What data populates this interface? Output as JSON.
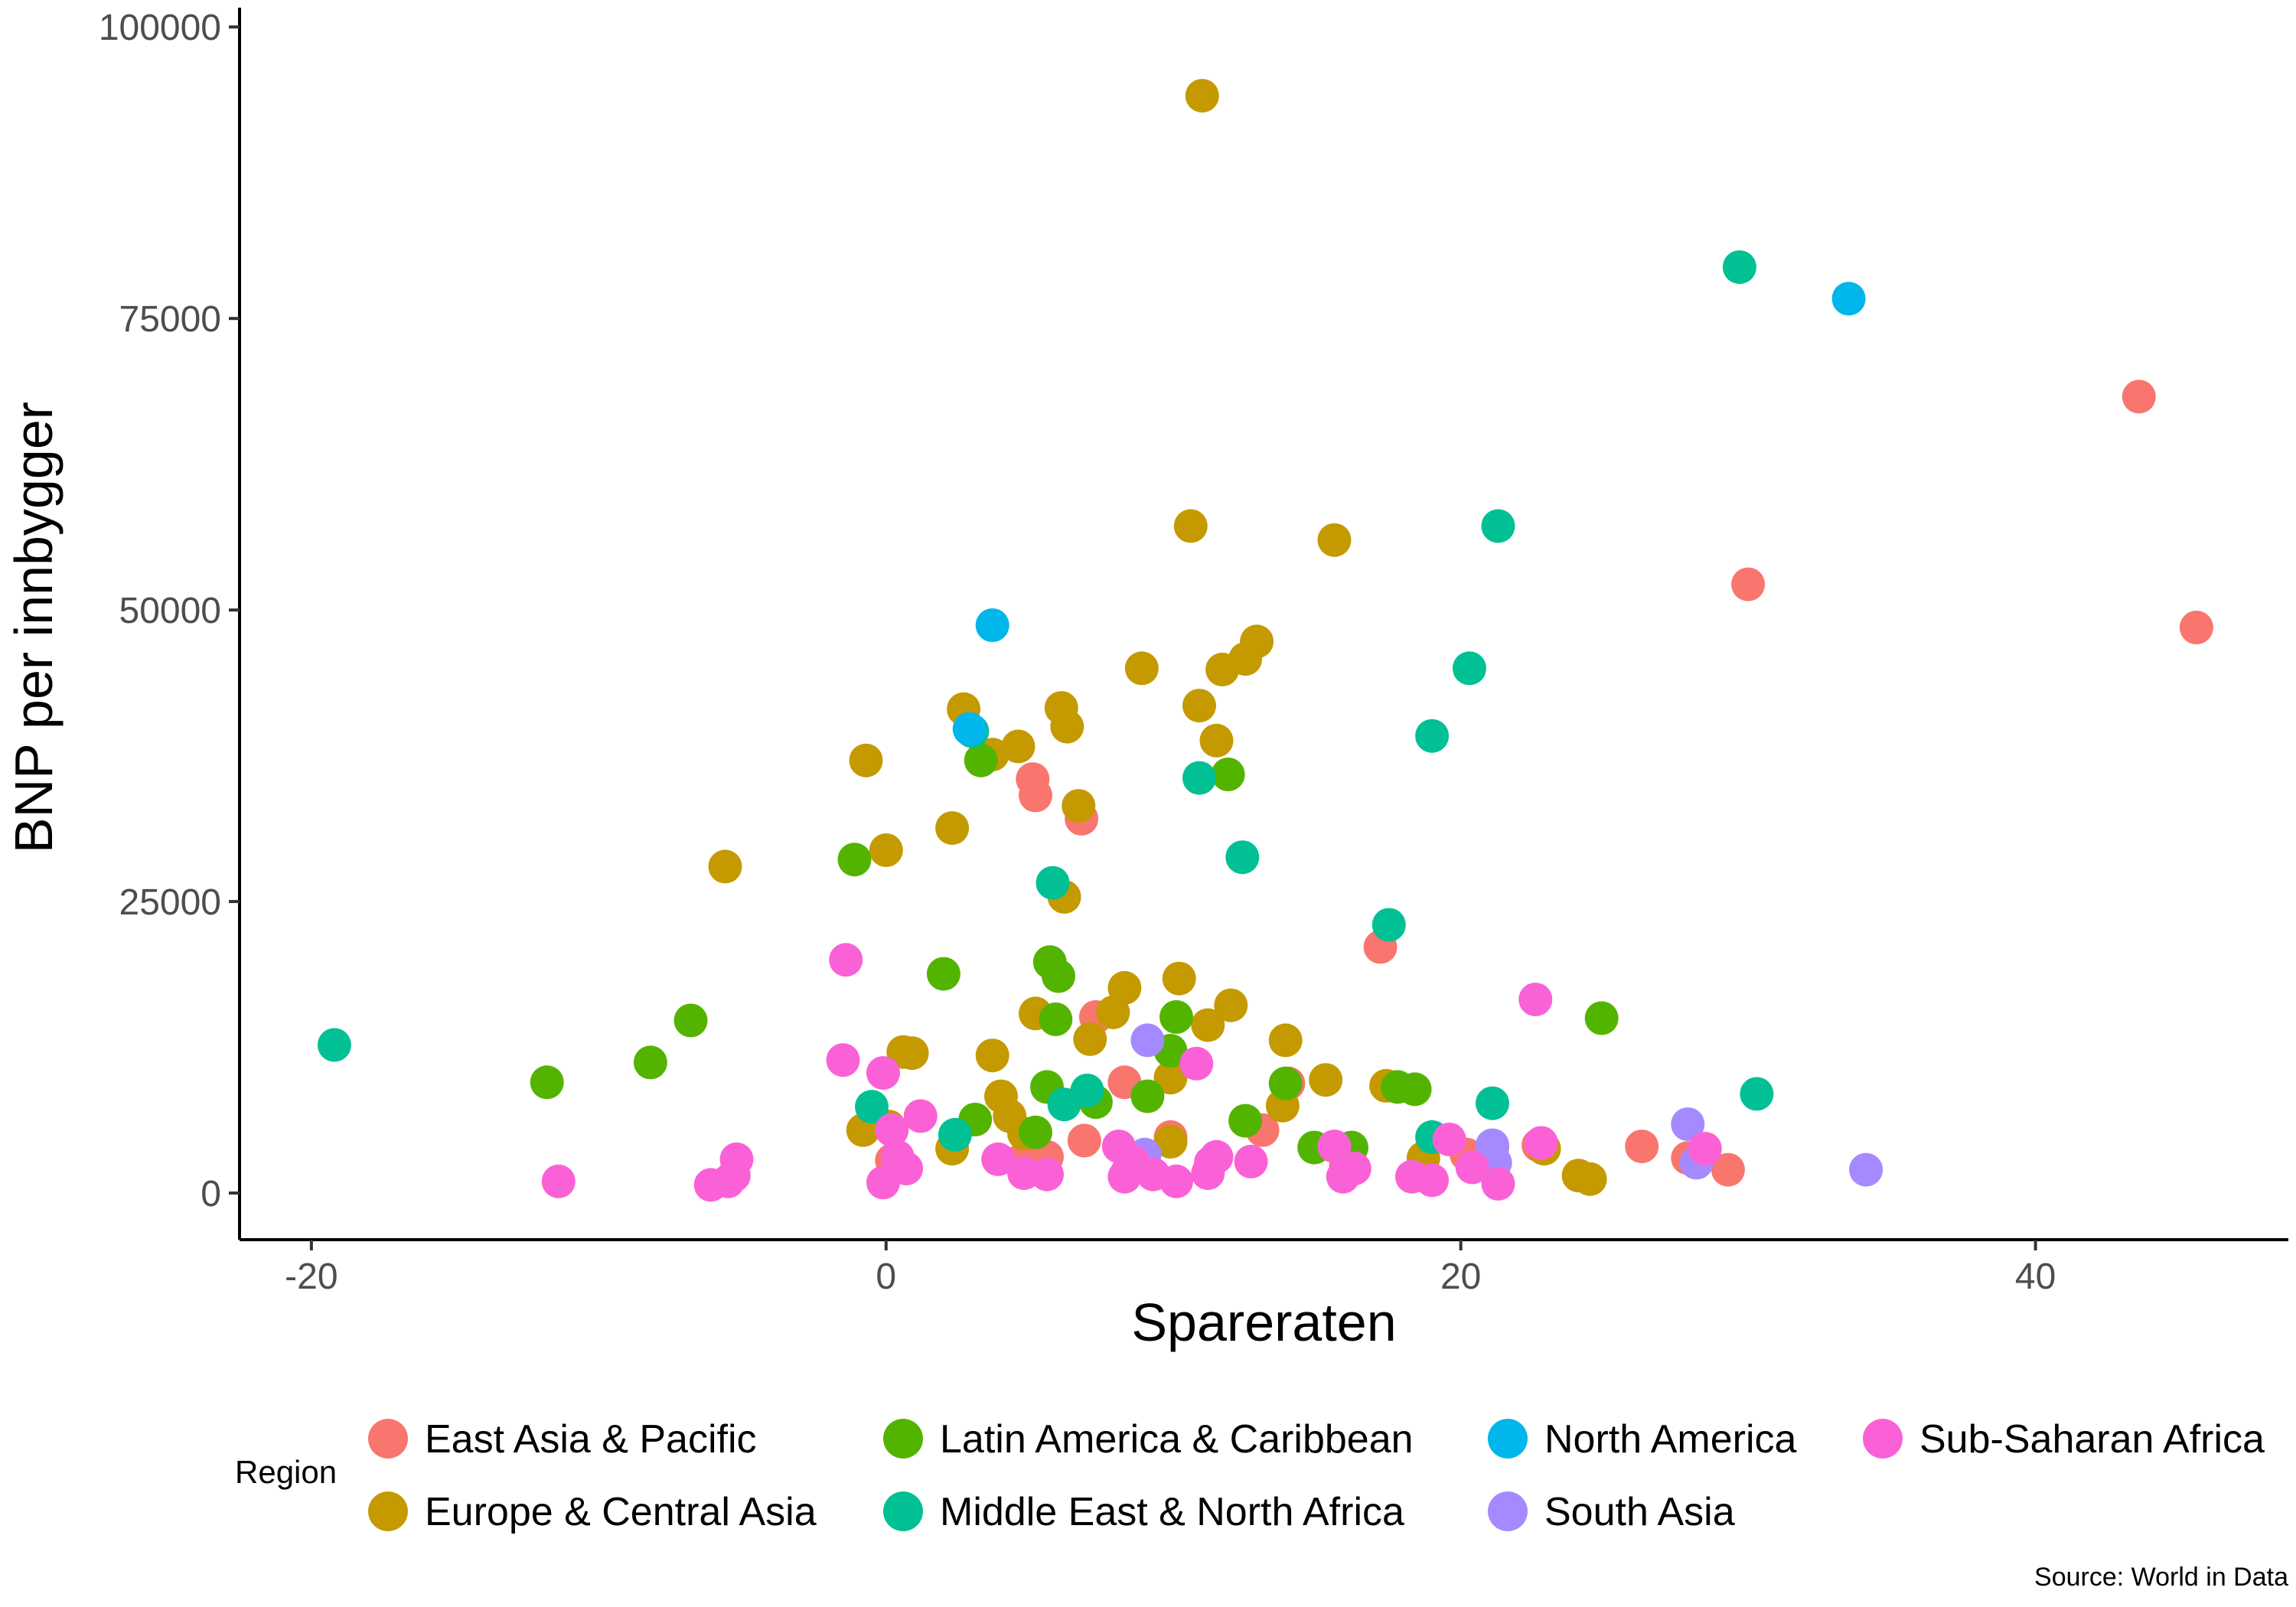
{
  "chart_data": {
    "type": "scatter",
    "xlabel": "Spareraten",
    "ylabel": "BNP per innbygger",
    "xlim": [
      -22.5,
      48.8
    ],
    "ylim": [
      -4000,
      101000
    ],
    "x_ticks": [
      -20,
      0,
      20,
      40
    ],
    "x_tick_labels": [
      "-20",
      "0",
      "20",
      "40"
    ],
    "y_ticks": [
      0,
      25000,
      50000,
      75000,
      100000
    ],
    "y_tick_labels": [
      "0",
      "25000",
      "50000",
      "75000",
      "100000"
    ],
    "grid": false,
    "legend": {
      "title": "Region",
      "position": "bottom"
    },
    "caption": "Source: World in Data",
    "series": [
      {
        "name": "East Asia & Pacific",
        "color": "#F8766D",
        "points": [
          [
            43.6,
            68300
          ],
          [
            30.0,
            52200
          ],
          [
            45.6,
            48500
          ],
          [
            17.2,
            21100
          ],
          [
            5.1,
            35500
          ],
          [
            5.2,
            34100
          ],
          [
            6.8,
            32100
          ],
          [
            8.3,
            9500
          ],
          [
            14.0,
            9400
          ],
          [
            7.3,
            15100
          ],
          [
            13.1,
            5400
          ],
          [
            26.3,
            4000
          ],
          [
            27.9,
            3000
          ],
          [
            29.3,
            2000
          ],
          [
            20.2,
            3300
          ],
          [
            22.7,
            4100
          ],
          [
            4.7,
            2800
          ],
          [
            6.9,
            4500
          ],
          [
            9.9,
            4800
          ],
          [
            5.6,
            3100
          ],
          [
            0.2,
            2800
          ],
          [
            16.0,
            2300
          ],
          [
            21.1,
            3900
          ]
        ]
      },
      {
        "name": "Europe & Central Asia",
        "color": "#C49A00",
        "points": [
          [
            11.0,
            94100
          ],
          [
            10.6,
            57200
          ],
          [
            15.6,
            56000
          ],
          [
            12.9,
            47300
          ],
          [
            12.5,
            45800
          ],
          [
            11.7,
            44900
          ],
          [
            8.9,
            45000
          ],
          [
            2.7,
            41500
          ],
          [
            6.1,
            41600
          ],
          [
            6.3,
            40000
          ],
          [
            10.9,
            41800
          ],
          [
            11.5,
            38800
          ],
          [
            4.6,
            38300
          ],
          [
            3.7,
            37600
          ],
          [
            -0.7,
            37100
          ],
          [
            6.7,
            33200
          ],
          [
            2.3,
            31300
          ],
          [
            0.0,
            29400
          ],
          [
            -5.6,
            28000
          ],
          [
            6.2,
            25400
          ],
          [
            8.3,
            17600
          ],
          [
            10.2,
            18400
          ],
          [
            12.0,
            16100
          ],
          [
            11.2,
            14400
          ],
          [
            13.9,
            13100
          ],
          [
            5.2,
            15400
          ],
          [
            7.9,
            15500
          ],
          [
            7.1,
            13200
          ],
          [
            0.6,
            12100
          ],
          [
            0.9,
            12000
          ],
          [
            3.7,
            11800
          ],
          [
            15.3,
            9700
          ],
          [
            17.4,
            9200
          ],
          [
            9.9,
            9900
          ],
          [
            13.8,
            7500
          ],
          [
            4.0,
            8300
          ],
          [
            4.3,
            6600
          ],
          [
            4.8,
            5100
          ],
          [
            0.1,
            5700
          ],
          [
            -0.8,
            5400
          ],
          [
            2.3,
            3800
          ],
          [
            9.9,
            4400
          ],
          [
            18.7,
            3000
          ],
          [
            22.9,
            3800
          ],
          [
            24.5,
            1200
          ],
          [
            24.1,
            1500
          ]
        ]
      },
      {
        "name": "Latin America & Caribbean",
        "color": "#53B400",
        "points": [
          [
            -1.1,
            28600
          ],
          [
            3.3,
            37100
          ],
          [
            11.9,
            35900
          ],
          [
            2.0,
            18800
          ],
          [
            5.7,
            19800
          ],
          [
            6.0,
            18600
          ],
          [
            5.9,
            14900
          ],
          [
            10.1,
            15100
          ],
          [
            24.9,
            15000
          ],
          [
            -6.8,
            14800
          ],
          [
            -8.2,
            11200
          ],
          [
            -11.8,
            9500
          ],
          [
            9.9,
            12200
          ],
          [
            13.9,
            9400
          ],
          [
            17.8,
            9100
          ],
          [
            18.4,
            8900
          ],
          [
            5.6,
            9100
          ],
          [
            9.1,
            8300
          ],
          [
            7.3,
            7800
          ],
          [
            12.5,
            6200
          ],
          [
            3.1,
            6300
          ],
          [
            5.2,
            5200
          ],
          [
            14.9,
            3900
          ],
          [
            16.2,
            3900
          ]
        ]
      },
      {
        "name": "Middle East & North Africa",
        "color": "#00C094",
        "points": [
          [
            29.7,
            79400
          ],
          [
            21.3,
            57200
          ],
          [
            20.3,
            45000
          ],
          [
            19.0,
            39200
          ],
          [
            10.9,
            35600
          ],
          [
            12.4,
            28800
          ],
          [
            5.8,
            26600
          ],
          [
            17.5,
            23000
          ],
          [
            3.0,
            39600
          ],
          [
            -19.2,
            12700
          ],
          [
            30.3,
            8500
          ],
          [
            21.1,
            7700
          ],
          [
            6.2,
            7600
          ],
          [
            -0.5,
            7400
          ],
          [
            7.0,
            8800
          ],
          [
            2.4,
            5000
          ],
          [
            19.0,
            4800
          ]
        ]
      },
      {
        "name": "North America",
        "color": "#00B6EB",
        "points": [
          [
            33.5,
            76700
          ],
          [
            3.7,
            48700
          ],
          [
            2.9,
            39800
          ]
        ]
      },
      {
        "name": "South Asia",
        "color": "#A58AFF",
        "points": [
          [
            9.1,
            13100
          ],
          [
            27.9,
            5900
          ],
          [
            34.1,
            2000
          ],
          [
            28.2,
            2600
          ],
          [
            21.1,
            4100
          ],
          [
            21.2,
            2600
          ],
          [
            9.0,
            3300
          ]
        ]
      },
      {
        "name": "Sub-Saharan Africa",
        "color": "#FB61D7",
        "points": [
          [
            -1.4,
            20000
          ],
          [
            22.6,
            16600
          ],
          [
            -1.5,
            11400
          ],
          [
            -0.1,
            10300
          ],
          [
            10.8,
            11100
          ],
          [
            1.2,
            6600
          ],
          [
            0.2,
            5400
          ],
          [
            15.6,
            4000
          ],
          [
            19.6,
            4600
          ],
          [
            22.8,
            4300
          ],
          [
            28.5,
            3800
          ],
          [
            0.4,
            3100
          ],
          [
            -5.2,
            2900
          ],
          [
            -5.3,
            1500
          ],
          [
            -6.1,
            700
          ],
          [
            -5.5,
            1000
          ],
          [
            -11.4,
            1000
          ],
          [
            0.7,
            2100
          ],
          [
            -0.1,
            900
          ],
          [
            3.9,
            2900
          ],
          [
            4.8,
            1700
          ],
          [
            5.6,
            1600
          ],
          [
            8.1,
            4000
          ],
          [
            8.4,
            1800
          ],
          [
            8.3,
            1400
          ],
          [
            9.3,
            1600
          ],
          [
            10.1,
            1000
          ],
          [
            11.2,
            1700
          ],
          [
            11.3,
            2600
          ],
          [
            12.7,
            2700
          ],
          [
            15.9,
            1400
          ],
          [
            16.3,
            2100
          ],
          [
            18.3,
            1400
          ],
          [
            19.0,
            1100
          ],
          [
            20.4,
            2200
          ],
          [
            21.3,
            800
          ],
          [
            11.5,
            3100
          ],
          [
            8.6,
            2700
          ]
        ]
      }
    ]
  }
}
